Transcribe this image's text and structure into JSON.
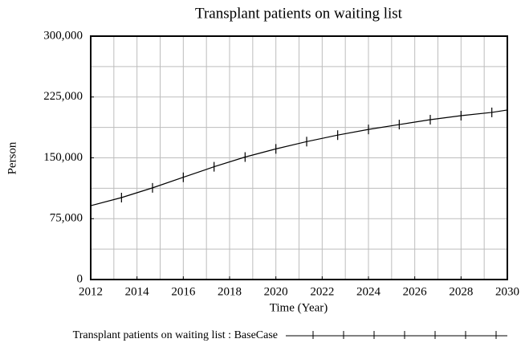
{
  "chart_data": {
    "type": "line",
    "title": "Transplant patients on waiting list",
    "xlabel": "Time (Year)",
    "ylabel": "Person",
    "x": [
      2012,
      2013.33,
      2014.67,
      2016,
      2017.33,
      2018.67,
      2020,
      2021.33,
      2022.67,
      2024,
      2025.33,
      2026.67,
      2028,
      2029.33,
      2030
    ],
    "series": [
      {
        "name": "Transplant patients on waiting list : BaseCase",
        "color": "#000000",
        "values": [
          91000,
          101000,
          113000,
          126000,
          139000,
          151000,
          161000,
          170000,
          178000,
          185000,
          191000,
          197000,
          202000,
          206000,
          209000
        ]
      }
    ],
    "xlim": [
      2012,
      2030
    ],
    "xticks": [
      2012,
      2014,
      2016,
      2018,
      2020,
      2022,
      2024,
      2026,
      2028,
      2030
    ],
    "ylim": [
      0,
      300000
    ],
    "yticks": [
      0,
      {
        "value": 75000,
        "label": "75,000"
      },
      {
        "value": 150000,
        "label": "150,000"
      },
      {
        "value": 225000,
        "label": "225,000"
      },
      {
        "value": 300000,
        "label": "300,000"
      }
    ],
    "xgrid": [
      2013,
      2014,
      2015,
      2016,
      2017,
      2018,
      2019,
      2020,
      2021,
      2022,
      2023,
      2024,
      2025,
      2026,
      2027,
      2028,
      2029
    ],
    "ygrid": [
      37500,
      75000,
      112500,
      150000,
      187500,
      225000,
      262500
    ],
    "grid": true,
    "legend": "bottom"
  }
}
